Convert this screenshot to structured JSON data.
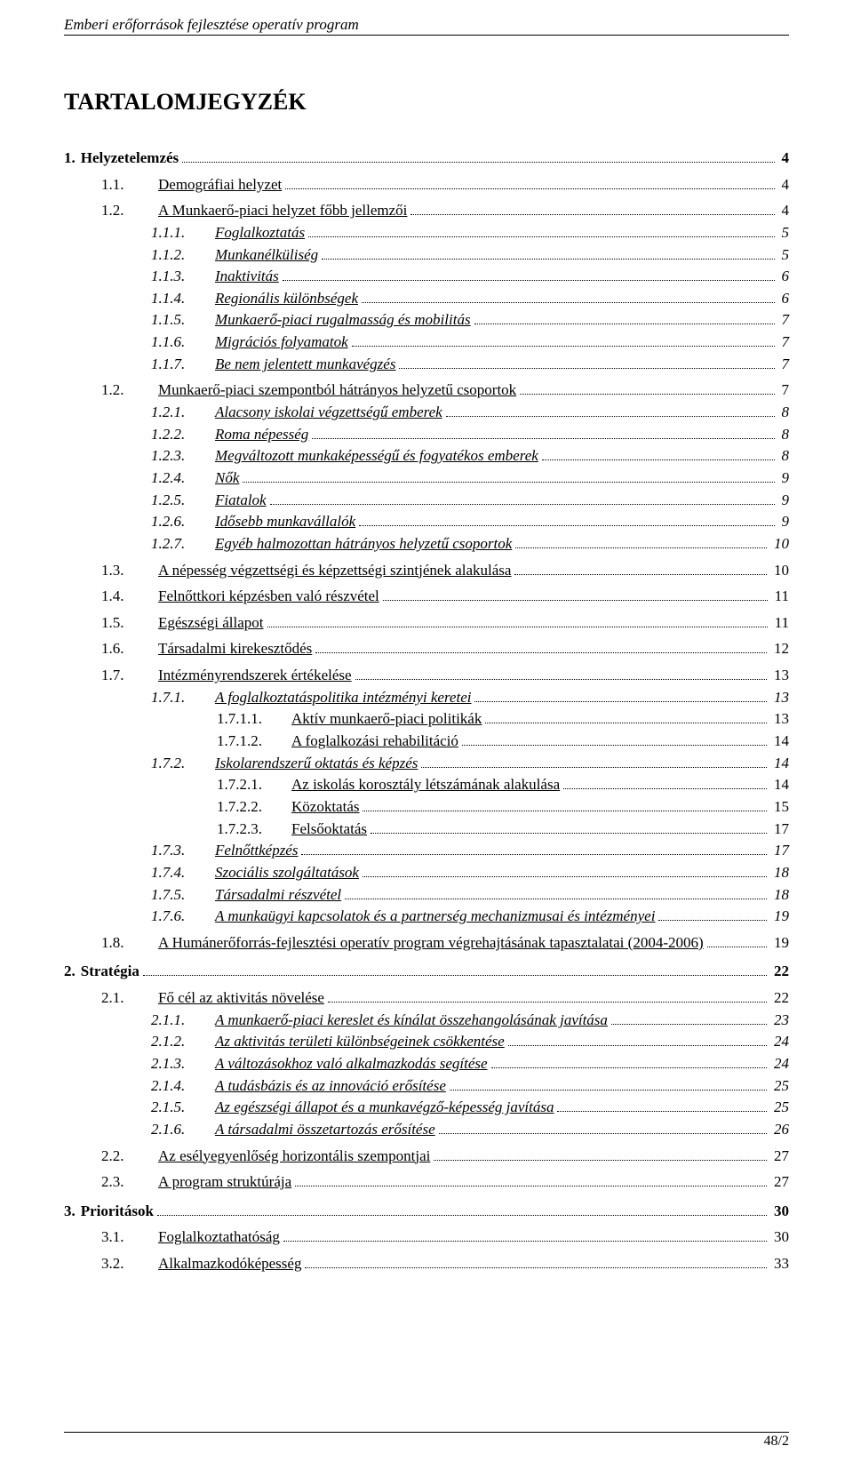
{
  "running_head": "Emberi erőforrások fejlesztése operatív program",
  "toc_title": "TARTALOMJEGYZÉK",
  "toc": [
    {
      "num": "1.",
      "label": "Helyzetelemzés",
      "page": "4",
      "indent": 0,
      "bold": true,
      "italic": false,
      "underline": false
    },
    {
      "num": "1.1.",
      "label": "Demográfiai helyzet",
      "page": "4",
      "indent": 1,
      "bold": false,
      "italic": false,
      "underline": true
    },
    {
      "num": "1.2.",
      "label": "A Munkaerő-piaci helyzet főbb jellemzői",
      "page": "4",
      "indent": 1,
      "bold": false,
      "italic": false,
      "underline": true
    },
    {
      "num": "1.1.1.",
      "label": "Foglalkoztatás",
      "page": "5",
      "indent": 2,
      "bold": false,
      "italic": true,
      "underline": true
    },
    {
      "num": "1.1.2.",
      "label": "Munkanélküliség",
      "page": "5",
      "indent": 2,
      "bold": false,
      "italic": true,
      "underline": true
    },
    {
      "num": "1.1.3.",
      "label": "Inaktivitás",
      "page": "6",
      "indent": 2,
      "bold": false,
      "italic": true,
      "underline": true
    },
    {
      "num": "1.1.4.",
      "label": "Regionális különbségek",
      "page": "6",
      "indent": 2,
      "bold": false,
      "italic": true,
      "underline": true
    },
    {
      "num": "1.1.5.",
      "label": "Munkaerő-piaci rugalmasság és mobilitás",
      "page": "7",
      "indent": 2,
      "bold": false,
      "italic": true,
      "underline": true
    },
    {
      "num": "1.1.6.",
      "label": "Migrációs folyamatok",
      "page": "7",
      "indent": 2,
      "bold": false,
      "italic": true,
      "underline": true
    },
    {
      "num": "1.1.7.",
      "label": "Be nem jelentett munkavégzés",
      "page": "7",
      "indent": 2,
      "bold": false,
      "italic": true,
      "underline": true
    },
    {
      "num": "1.2.",
      "label": "Munkaerő-piaci szempontból hátrányos helyzetű csoportok",
      "page": "7",
      "indent": 1,
      "bold": false,
      "italic": false,
      "underline": true
    },
    {
      "num": "1.2.1.",
      "label": "Alacsony iskolai végzettségű emberek",
      "page": "8",
      "indent": 2,
      "bold": false,
      "italic": true,
      "underline": true
    },
    {
      "num": "1.2.2.",
      "label": "Roma népesség",
      "page": "8",
      "indent": 2,
      "bold": false,
      "italic": true,
      "underline": true
    },
    {
      "num": "1.2.3.",
      "label": "Megváltozott munkaképességű és fogyatékos emberek",
      "page": "8",
      "indent": 2,
      "bold": false,
      "italic": true,
      "underline": true
    },
    {
      "num": "1.2.4.",
      "label": "Nők",
      "page": "9",
      "indent": 2,
      "bold": false,
      "italic": true,
      "underline": true
    },
    {
      "num": "1.2.5.",
      "label": "Fiatalok",
      "page": "9",
      "indent": 2,
      "bold": false,
      "italic": true,
      "underline": true
    },
    {
      "num": "1.2.6.",
      "label": "Idősebb munkavállalók",
      "page": "9",
      "indent": 2,
      "bold": false,
      "italic": true,
      "underline": true
    },
    {
      "num": "1.2.7.",
      "label": "Egyéb halmozottan hátrányos helyzetű csoportok",
      "page": "10",
      "indent": 2,
      "bold": false,
      "italic": true,
      "underline": true
    },
    {
      "num": "1.3.",
      "label": "A népesség végzettségi és képzettségi szintjének alakulása",
      "page": "10",
      "indent": 1,
      "bold": false,
      "italic": false,
      "underline": true
    },
    {
      "num": "1.4.",
      "label": "Felnőttkori képzésben való részvétel",
      "page": "11",
      "indent": 1,
      "bold": false,
      "italic": false,
      "underline": true
    },
    {
      "num": "1.5.",
      "label": "Egészségi állapot",
      "page": "11",
      "indent": 1,
      "bold": false,
      "italic": false,
      "underline": true
    },
    {
      "num": "1.6.",
      "label": "Társadalmi kirekesztődés",
      "page": "12",
      "indent": 1,
      "bold": false,
      "italic": false,
      "underline": true
    },
    {
      "num": "1.7.",
      "label": "Intézményrendszerek értékelése",
      "page": "13",
      "indent": 1,
      "bold": false,
      "italic": false,
      "underline": true
    },
    {
      "num": "1.7.1.",
      "label": "A foglalkoztatáspolitika intézményi keretei",
      "page": "13",
      "indent": 2,
      "bold": false,
      "italic": true,
      "underline": true
    },
    {
      "num": "1.7.1.1.",
      "label": "Aktív munkaerő-piaci politikák",
      "page": "13",
      "indent": 3,
      "bold": false,
      "italic": false,
      "underline": true
    },
    {
      "num": "1.7.1.2.",
      "label": "A foglalkozási rehabilitáció",
      "page": "14",
      "indent": 3,
      "bold": false,
      "italic": false,
      "underline": true
    },
    {
      "num": "1.7.2.",
      "label": "Iskolarendszerű oktatás és képzés",
      "page": "14",
      "indent": 2,
      "bold": false,
      "italic": true,
      "underline": true
    },
    {
      "num": "1.7.2.1.",
      "label": "Az iskolás korosztály létszámának alakulása",
      "page": "14",
      "indent": 3,
      "bold": false,
      "italic": false,
      "underline": true
    },
    {
      "num": "1.7.2.2.",
      "label": "Közoktatás",
      "page": "15",
      "indent": 3,
      "bold": false,
      "italic": false,
      "underline": true
    },
    {
      "num": "1.7.2.3.",
      "label": "Felsőoktatás",
      "page": "17",
      "indent": 3,
      "bold": false,
      "italic": false,
      "underline": true
    },
    {
      "num": "1.7.3.",
      "label": "Felnőttképzés",
      "page": "17",
      "indent": 2,
      "bold": false,
      "italic": true,
      "underline": true
    },
    {
      "num": "1.7.4.",
      "label": "Szociális szolgáltatások",
      "page": "18",
      "indent": 2,
      "bold": false,
      "italic": true,
      "underline": true
    },
    {
      "num": "1.7.5.",
      "label": "Társadalmi részvétel",
      "page": "18",
      "indent": 2,
      "bold": false,
      "italic": true,
      "underline": true
    },
    {
      "num": "1.7.6.",
      "label": "A munkaügyi kapcsolatok és a partnerség mechanizmusai és intézményei",
      "page": "19",
      "indent": 2,
      "bold": false,
      "italic": true,
      "underline": true
    },
    {
      "num": "1.8.",
      "label": "A Humánerőforrás-fejlesztési operatív program végrehajtásának tapasztalatai (2004-2006)",
      "page": "19",
      "indent": 1,
      "bold": false,
      "italic": false,
      "underline": true
    },
    {
      "num": "2.",
      "label": "Stratégia",
      "page": "22",
      "indent": 0,
      "bold": true,
      "italic": false,
      "underline": false
    },
    {
      "num": "2.1.",
      "label": "Fő cél az aktivitás növelése",
      "page": "22",
      "indent": 1,
      "bold": false,
      "italic": false,
      "underline": true
    },
    {
      "num": "2.1.1.",
      "label": "A munkaerő-piaci kereslet és kínálat összehangolásának javítása",
      "page": "23",
      "indent": 2,
      "bold": false,
      "italic": true,
      "underline": true
    },
    {
      "num": "2.1.2.",
      "label": "Az aktivitás területi különbségeinek csökkentése",
      "page": "24",
      "indent": 2,
      "bold": false,
      "italic": true,
      "underline": true
    },
    {
      "num": "2.1.3.",
      "label": "A változásokhoz való alkalmazkodás segítése",
      "page": "24",
      "indent": 2,
      "bold": false,
      "italic": true,
      "underline": true
    },
    {
      "num": "2.1.4.",
      "label": "A tudásbázis és az innováció erősítése",
      "page": "25",
      "indent": 2,
      "bold": false,
      "italic": true,
      "underline": true
    },
    {
      "num": "2.1.5.",
      "label": "Az egészségi állapot és a munkavégző-képesség javítása",
      "page": "25",
      "indent": 2,
      "bold": false,
      "italic": true,
      "underline": true
    },
    {
      "num": "2.1.6.",
      "label": "A társadalmi összetartozás erősítése",
      "page": "26",
      "indent": 2,
      "bold": false,
      "italic": true,
      "underline": true
    },
    {
      "num": "2.2.",
      "label": "Az esélyegyenlőség horizontális szempontjai",
      "page": "27",
      "indent": 1,
      "bold": false,
      "italic": false,
      "underline": true
    },
    {
      "num": "2.3.",
      "label": "A program struktúrája",
      "page": "27",
      "indent": 1,
      "bold": false,
      "italic": false,
      "underline": true
    },
    {
      "num": "3.",
      "label": "Prioritások",
      "page": "30",
      "indent": 0,
      "bold": true,
      "italic": false,
      "underline": false
    },
    {
      "num": "3.1.",
      "label": "Foglalkoztathatóság",
      "page": "30",
      "indent": 1,
      "bold": false,
      "italic": false,
      "underline": true
    },
    {
      "num": "3.2.",
      "label": "Alkalmazkodóképesség",
      "page": "33",
      "indent": 1,
      "bold": false,
      "italic": false,
      "underline": true
    }
  ],
  "footer": "48/2"
}
